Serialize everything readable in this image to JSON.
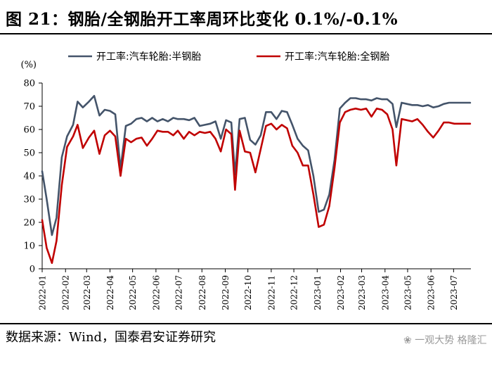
{
  "header": {
    "title": "图 21：钢胎/全钢胎开工率周环比变化 0.1%/-0.1%"
  },
  "footer": {
    "source": "数据来源：Wind，国泰君安证券研究"
  },
  "watermark": {
    "text": "❀ 一观大势 格隆汇"
  },
  "chart_data": {
    "type": "line",
    "ylabel": "(%)",
    "ylim": [
      0,
      80
    ],
    "yticks": [
      "0",
      "10",
      "20",
      "30",
      "40",
      "50",
      "60",
      "70",
      "80"
    ],
    "x_range": [
      "2022-01-01",
      "2023-07-24"
    ],
    "x_tick_labels": [
      "2022-01",
      "2022-02",
      "2022-03",
      "2022-04",
      "2022-05",
      "2022-06",
      "2022-07",
      "2022-08",
      "2022-09",
      "2022-10",
      "2022-11",
      "2022-12",
      "2023-01",
      "2023-02",
      "2023-03",
      "2023-04",
      "2023-05",
      "2023-06",
      "2023-07"
    ],
    "grid": false,
    "legend_position": "top",
    "series": [
      {
        "name": "开工率:汽车轮胎:半钢胎",
        "color": "#44546a",
        "points": [
          [
            "2022-01-01",
            42
          ],
          [
            "2022-01-07",
            30
          ],
          [
            "2022-01-14",
            14.5
          ],
          [
            "2022-01-20",
            22
          ],
          [
            "2022-01-27",
            48
          ],
          [
            "2022-02-03",
            57
          ],
          [
            "2022-02-11",
            62
          ],
          [
            "2022-02-17",
            72
          ],
          [
            "2022-02-24",
            69.5
          ],
          [
            "2022-03-04",
            72
          ],
          [
            "2022-03-11",
            74.5
          ],
          [
            "2022-03-18",
            66
          ],
          [
            "2022-03-25",
            68.5
          ],
          [
            "2022-04-01",
            68
          ],
          [
            "2022-04-08",
            66.5
          ],
          [
            "2022-04-15",
            43
          ],
          [
            "2022-04-22",
            61.5
          ],
          [
            "2022-04-29",
            62.5
          ],
          [
            "2022-05-06",
            64.5
          ],
          [
            "2022-05-13",
            65
          ],
          [
            "2022-05-20",
            63.5
          ],
          [
            "2022-05-27",
            65
          ],
          [
            "2022-06-03",
            63.5
          ],
          [
            "2022-06-10",
            64.5
          ],
          [
            "2022-06-17",
            63.5
          ],
          [
            "2022-06-24",
            65
          ],
          [
            "2022-06-30",
            64.5
          ],
          [
            "2022-07-08",
            64.5
          ],
          [
            "2022-07-15",
            64
          ],
          [
            "2022-07-22",
            65
          ],
          [
            "2022-07-29",
            61.5
          ],
          [
            "2022-08-05",
            62
          ],
          [
            "2022-08-12",
            62.5
          ],
          [
            "2022-08-19",
            63.5
          ],
          [
            "2022-08-26",
            56
          ],
          [
            "2022-09-02",
            64
          ],
          [
            "2022-09-09",
            63
          ],
          [
            "2022-09-14",
            40.5
          ],
          [
            "2022-09-20",
            64.5
          ],
          [
            "2022-09-27",
            65
          ],
          [
            "2022-10-04",
            55.5
          ],
          [
            "2022-10-11",
            53.5
          ],
          [
            "2022-10-18",
            57.5
          ],
          [
            "2022-10-25",
            67.5
          ],
          [
            "2022-11-01",
            67.5
          ],
          [
            "2022-11-08",
            64.5
          ],
          [
            "2022-11-15",
            68
          ],
          [
            "2022-11-22",
            67.5
          ],
          [
            "2022-11-29",
            62
          ],
          [
            "2022-12-06",
            56
          ],
          [
            "2022-12-13",
            53
          ],
          [
            "2022-12-20",
            51
          ],
          [
            "2022-12-27",
            40
          ],
          [
            "2023-01-03",
            24.5
          ],
          [
            "2023-01-10",
            25.5
          ],
          [
            "2023-01-17",
            32
          ],
          [
            "2023-01-24",
            47
          ],
          [
            "2023-01-31",
            69
          ],
          [
            "2023-02-07",
            71.5
          ],
          [
            "2023-02-14",
            73.5
          ],
          [
            "2023-02-21",
            73.5
          ],
          [
            "2023-02-28",
            73
          ],
          [
            "2023-03-07",
            73
          ],
          [
            "2023-03-14",
            72.5
          ],
          [
            "2023-03-21",
            73.5
          ],
          [
            "2023-03-28",
            73
          ],
          [
            "2023-04-04",
            73
          ],
          [
            "2023-04-11",
            71
          ],
          [
            "2023-04-16",
            61
          ],
          [
            "2023-04-23",
            71.5
          ],
          [
            "2023-04-30",
            71
          ],
          [
            "2023-05-07",
            70.5
          ],
          [
            "2023-05-14",
            70.5
          ],
          [
            "2023-05-21",
            70
          ],
          [
            "2023-05-28",
            70.5
          ],
          [
            "2023-06-04",
            69.5
          ],
          [
            "2023-06-11",
            70
          ],
          [
            "2023-06-18",
            71
          ],
          [
            "2023-06-25",
            71.5
          ],
          [
            "2023-07-02",
            71.5
          ],
          [
            "2023-07-09",
            71.5
          ],
          [
            "2023-07-16",
            71.5
          ],
          [
            "2023-07-23",
            71.5
          ]
        ]
      },
      {
        "name": "开工率:汽车轮胎:全钢胎",
        "color": "#c00000",
        "points": [
          [
            "2022-01-01",
            21
          ],
          [
            "2022-01-07",
            9
          ],
          [
            "2022-01-14",
            2.5
          ],
          [
            "2022-01-20",
            12
          ],
          [
            "2022-01-27",
            36
          ],
          [
            "2022-02-03",
            52.5
          ],
          [
            "2022-02-11",
            57
          ],
          [
            "2022-02-17",
            62
          ],
          [
            "2022-02-24",
            52
          ],
          [
            "2022-03-04",
            56.5
          ],
          [
            "2022-03-11",
            59.5
          ],
          [
            "2022-03-18",
            49.5
          ],
          [
            "2022-03-25",
            57.5
          ],
          [
            "2022-04-01",
            59.5
          ],
          [
            "2022-04-08",
            57
          ],
          [
            "2022-04-15",
            40
          ],
          [
            "2022-04-22",
            56
          ],
          [
            "2022-04-29",
            54.5
          ],
          [
            "2022-05-06",
            56
          ],
          [
            "2022-05-13",
            56.5
          ],
          [
            "2022-05-20",
            53
          ],
          [
            "2022-05-27",
            56
          ],
          [
            "2022-06-03",
            59.5
          ],
          [
            "2022-06-10",
            59
          ],
          [
            "2022-06-17",
            59
          ],
          [
            "2022-06-24",
            57.5
          ],
          [
            "2022-06-30",
            59.5
          ],
          [
            "2022-07-08",
            56
          ],
          [
            "2022-07-15",
            59
          ],
          [
            "2022-07-22",
            57.5
          ],
          [
            "2022-07-29",
            59
          ],
          [
            "2022-08-05",
            58.5
          ],
          [
            "2022-08-12",
            59
          ],
          [
            "2022-08-19",
            56
          ],
          [
            "2022-08-26",
            50.5
          ],
          [
            "2022-09-02",
            60
          ],
          [
            "2022-09-09",
            58
          ],
          [
            "2022-09-14",
            34
          ],
          [
            "2022-09-20",
            59.5
          ],
          [
            "2022-09-27",
            50.5
          ],
          [
            "2022-10-04",
            50
          ],
          [
            "2022-10-11",
            41.5
          ],
          [
            "2022-10-18",
            51.5
          ],
          [
            "2022-10-25",
            61.5
          ],
          [
            "2022-11-01",
            62.5
          ],
          [
            "2022-11-08",
            60
          ],
          [
            "2022-11-15",
            62
          ],
          [
            "2022-11-22",
            60.5
          ],
          [
            "2022-11-29",
            53
          ],
          [
            "2022-12-06",
            50
          ],
          [
            "2022-12-13",
            44.5
          ],
          [
            "2022-12-20",
            44.5
          ],
          [
            "2022-12-27",
            32
          ],
          [
            "2023-01-03",
            18
          ],
          [
            "2023-01-10",
            19
          ],
          [
            "2023-01-17",
            27
          ],
          [
            "2023-01-24",
            43.5
          ],
          [
            "2023-01-31",
            63
          ],
          [
            "2023-02-07",
            67.5
          ],
          [
            "2023-02-14",
            68.5
          ],
          [
            "2023-02-21",
            69
          ],
          [
            "2023-02-28",
            68.5
          ],
          [
            "2023-03-07",
            69
          ],
          [
            "2023-03-14",
            65.5
          ],
          [
            "2023-03-21",
            69
          ],
          [
            "2023-03-28",
            68.5
          ],
          [
            "2023-04-04",
            66.5
          ],
          [
            "2023-04-11",
            60
          ],
          [
            "2023-04-16",
            44.5
          ],
          [
            "2023-04-23",
            64.5
          ],
          [
            "2023-04-30",
            64
          ],
          [
            "2023-05-07",
            63.5
          ],
          [
            "2023-05-14",
            64.5
          ],
          [
            "2023-05-21",
            62
          ],
          [
            "2023-05-28",
            59
          ],
          [
            "2023-06-04",
            56.5
          ],
          [
            "2023-06-11",
            59.5
          ],
          [
            "2023-06-18",
            63
          ],
          [
            "2023-06-25",
            63
          ],
          [
            "2023-07-02",
            62.5
          ],
          [
            "2023-07-09",
            62.5
          ],
          [
            "2023-07-16",
            62.5
          ],
          [
            "2023-07-23",
            62.5
          ]
        ]
      }
    ]
  }
}
